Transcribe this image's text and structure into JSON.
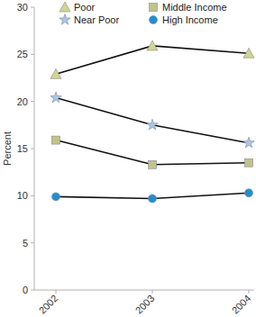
{
  "chart_data": {
    "type": "line",
    "y_label": "Percent",
    "categories": [
      "2002",
      "2003",
      "2004"
    ],
    "series": [
      {
        "name": "Poor",
        "color": "#d2d58c",
        "marker": "triangle",
        "values": [
          22.9,
          25.9,
          25.1
        ]
      },
      {
        "name": "Near Poor",
        "color": "#a9c6e8",
        "marker": "star",
        "values": [
          20.4,
          17.5,
          15.6
        ]
      },
      {
        "name": "Middle Income",
        "color": "#c3c387",
        "marker": "square",
        "values": [
          15.9,
          13.3,
          13.5
        ]
      },
      {
        "name": "High Income",
        "color": "#1f8fd2",
        "marker": "circle",
        "values": [
          9.9,
          9.7,
          10.3
        ]
      }
    ],
    "ylim": [
      0,
      30
    ],
    "yticks": [
      0,
      5,
      10,
      15,
      20,
      25,
      30
    ],
    "grid": false,
    "legend": "top"
  }
}
